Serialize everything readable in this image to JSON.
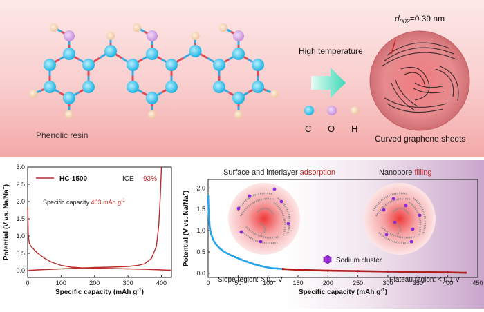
{
  "top": {
    "resin_label": "Phenolic resin",
    "process_label": "High temperature",
    "legend": {
      "c": "C",
      "o": "O",
      "h": "H"
    },
    "product_label": "Curved graphene sheets",
    "spacing_label_d": "d",
    "spacing_label_sub": "002",
    "spacing_label_value": "=0.39 nm",
    "colors": {
      "carbon": "#3fc4ea",
      "oxygen": "#d9a9e6",
      "hydrogen": "#f2d0b0",
      "arrow": "#3fd9b7"
    }
  },
  "left_plot": {
    "legend": "HC-1500",
    "ice_label": "ICE",
    "ice_value": "93%",
    "capacity_text": "Specific capacity",
    "capacity_value": "403 mAh g",
    "capacity_unit_sup": "-1"
  },
  "right_plot": {
    "adsorption_text": "Surface and interlayer ",
    "adsorption_highlight": "adsorption",
    "nanopore_text": "Nanopore ",
    "nanopore_highlight": "filling",
    "sodium_label": "Sodium cluster",
    "slope_label": "Slope region: > 0.1 V",
    "plateau_label": "Plateau region: < 0.1 V"
  },
  "chart_data": [
    {
      "type": "line",
      "title": "",
      "xlabel": "Specific capacity (mAh g",
      "xlabel_sup": "-1",
      "xlabel_end": ")",
      "ylabel": "Potential (V vs. Na/Na",
      "ylabel_sup": "+",
      "ylabel_end": ")",
      "xlim": [
        0,
        430
      ],
      "ylim": [
        -0.2,
        3.0
      ],
      "xticks": [
        "0",
        "100",
        "200",
        "300",
        "400"
      ],
      "yticks": [
        "0.0",
        "0.5",
        "1.0",
        "1.5",
        "2.0",
        "2.5",
        "3.0"
      ],
      "xtick_values": [
        0,
        100,
        200,
        300,
        400
      ],
      "ytick_values": [
        0.0,
        0.5,
        1.0,
        1.5,
        2.0,
        2.5,
        3.0
      ],
      "series": [
        {
          "name": "HC-1500 discharge",
          "x": [
            0,
            2,
            5,
            10,
            20,
            30,
            50,
            70,
            100,
            130,
            160,
            200,
            250,
            300,
            350,
            400,
            430
          ],
          "y": [
            1.85,
            1.0,
            0.8,
            0.7,
            0.6,
            0.5,
            0.36,
            0.25,
            0.15,
            0.1,
            0.08,
            0.07,
            0.06,
            0.05,
            0.04,
            0.02,
            0.01
          ]
        },
        {
          "name": "HC-1500 charge",
          "x": [
            0,
            10,
            50,
            100,
            150,
            200,
            250,
            300,
            330,
            350,
            370,
            385,
            392,
            397,
            400
          ],
          "y": [
            0.0,
            0.01,
            0.03,
            0.05,
            0.07,
            0.09,
            0.1,
            0.12,
            0.15,
            0.2,
            0.35,
            0.7,
            1.3,
            2.2,
            3.0
          ]
        }
      ]
    },
    {
      "type": "scatter",
      "title": "",
      "xlabel": "Specific capacity (mAh g",
      "xlabel_sup": "-1",
      "xlabel_end": ")",
      "ylabel": "Potential (V vs. Na/Na",
      "ylabel_sup": "+",
      "ylabel_end": ")",
      "xlim": [
        0,
        450
      ],
      "ylim": [
        -0.1,
        2.2
      ],
      "xticks": [
        "0",
        "50",
        "100",
        "150",
        "200",
        "250",
        "300",
        "350",
        "400",
        "450"
      ],
      "yticks": [
        "0.0",
        "0.5",
        "1.0",
        "1.5",
        "2.0"
      ],
      "xtick_values": [
        0,
        50,
        100,
        150,
        200,
        250,
        300,
        350,
        400,
        450
      ],
      "ytick_values": [
        0.0,
        0.5,
        1.0,
        1.5,
        2.0
      ],
      "series": [
        {
          "name": "Slope region",
          "color": "#29a3e8",
          "x": [
            0,
            1,
            2,
            3,
            5,
            8,
            12,
            18,
            25,
            35,
            45,
            55,
            65,
            75,
            85,
            95,
            105,
            115,
            125
          ],
          "y": [
            1.8,
            1.4,
            1.2,
            1.05,
            0.92,
            0.8,
            0.7,
            0.6,
            0.52,
            0.44,
            0.38,
            0.32,
            0.27,
            0.22,
            0.18,
            0.15,
            0.12,
            0.11,
            0.1
          ]
        },
        {
          "name": "Plateau region",
          "color": "#b01e1e",
          "x": [
            125,
            150,
            200,
            250,
            300,
            350,
            400,
            430
          ],
          "y": [
            0.1,
            0.08,
            0.06,
            0.05,
            0.04,
            0.03,
            0.02,
            0.01
          ]
        }
      ]
    }
  ]
}
